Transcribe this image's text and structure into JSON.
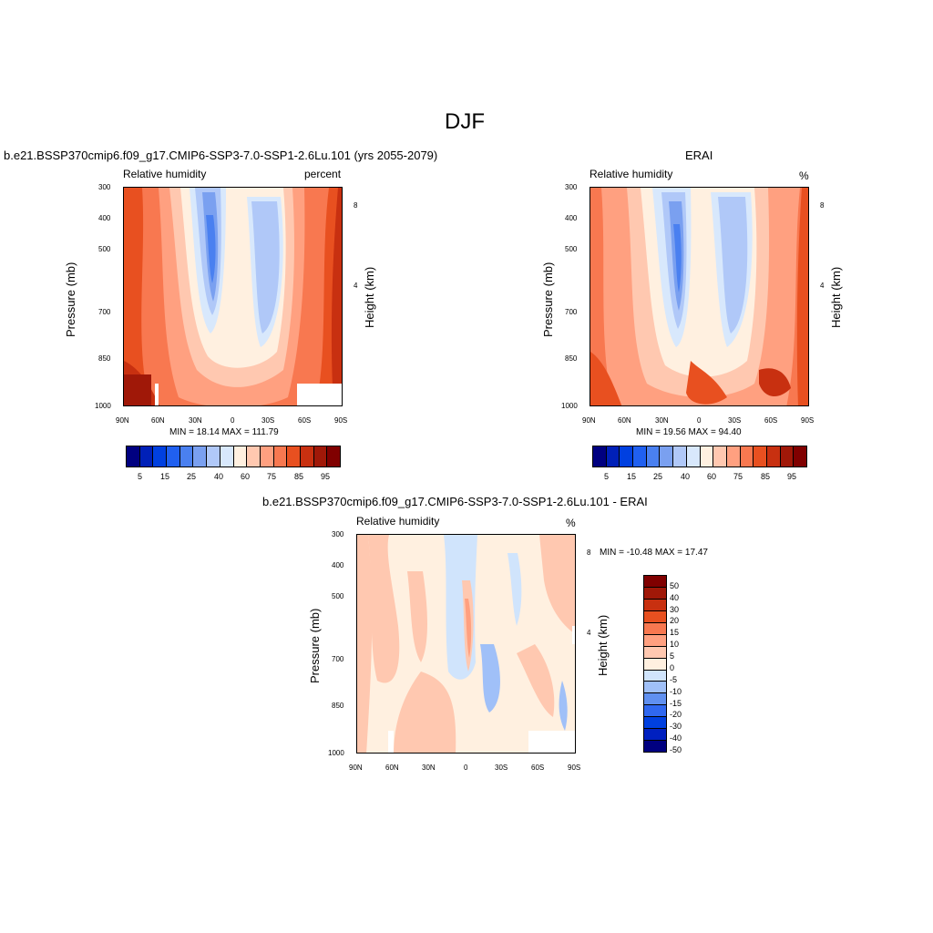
{
  "figure": {
    "title": "DJF"
  },
  "colors": {
    "ramp": [
      "#000080",
      "#0020b8",
      "#0040e0",
      "#2060f0",
      "#4a80f0",
      "#7aa0f0",
      "#b0c8f8",
      "#d8e8fc",
      "#fff0e0",
      "#ffc8b0",
      "#ffa080",
      "#f87850",
      "#e85020",
      "#c83010",
      "#a01808",
      "#800000"
    ],
    "diff_ramp": [
      "#000080",
      "#0020c0",
      "#0040e0",
      "#3068f0",
      "#6090f0",
      "#a0c0f8",
      "#d0e4fc",
      "#fff0e0",
      "#ffc8b0",
      "#ffa080",
      "#f87850",
      "#e85020",
      "#c83010",
      "#a01808",
      "#800000"
    ]
  },
  "chart_data": [
    {
      "type": "heatmap",
      "name": "model",
      "title": "b.e21.BSSP370cmip6.f09_g17.CMIP6-SSP3-7.0-SSP1-2.6Lu.101 (yrs 2055-2079)",
      "left_label": "Relative humidity",
      "right_label": "percent",
      "xlabel": "",
      "ylabel": "Pressure (mb)",
      "y2label": "Height (km)",
      "x_ticks": [
        "90N",
        "60N",
        "30N",
        "0",
        "30S",
        "60S",
        "90S"
      ],
      "y_ticks": [
        "300",
        "400",
        "500",
        "700",
        "850",
        "1000"
      ],
      "y2_ticks": [
        "8",
        "4"
      ],
      "stats": "MIN =  18.14  MAX = 111.79",
      "cbar_labels": [
        "5",
        "15",
        "25",
        "40",
        "60",
        "75",
        "85",
        "95"
      ]
    },
    {
      "type": "heatmap",
      "name": "obs",
      "title": "ERAI",
      "left_label": "Relative humidity",
      "right_label": "%",
      "xlabel": "",
      "ylabel": "Pressure (mb)",
      "y2label": "Height (km)",
      "x_ticks": [
        "90N",
        "60N",
        "30N",
        "0",
        "30S",
        "60S",
        "90S"
      ],
      "y_ticks": [
        "300",
        "400",
        "500",
        "700",
        "850",
        "1000"
      ],
      "y2_ticks": [
        "8",
        "4"
      ],
      "stats": "MIN =  19.56  MAX =  94.40",
      "cbar_labels": [
        "5",
        "15",
        "25",
        "40",
        "60",
        "75",
        "85",
        "95"
      ]
    },
    {
      "type": "heatmap",
      "name": "difference",
      "title": "b.e21.BSSP370cmip6.f09_g17.CMIP6-SSP3-7.0-SSP1-2.6Lu.101 - ERAI",
      "left_label": "Relative humidity",
      "right_label": "%",
      "xlabel": "",
      "ylabel": "Pressure (mb)",
      "y2label": "Height (km)",
      "x_ticks": [
        "90N",
        "60N",
        "30N",
        "0",
        "30S",
        "60S",
        "90S"
      ],
      "y_ticks": [
        "300",
        "400",
        "500",
        "700",
        "850",
        "1000"
      ],
      "y2_ticks": [
        "8",
        "4"
      ],
      "stats": "MIN = -10.48  MAX =  17.47",
      "cbar_labels": [
        "50",
        "40",
        "30",
        "20",
        "15",
        "10",
        "5",
        "0",
        "-5",
        "-10",
        "-15",
        "-20",
        "-30",
        "-40",
        "-50"
      ]
    }
  ]
}
